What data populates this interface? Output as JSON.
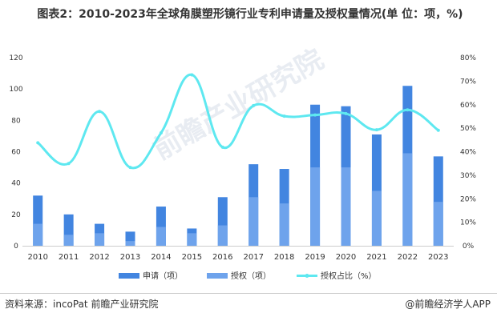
{
  "title": "图表2：2010-2023年全球角膜塑形镜行业专利申请量及授权量情况(单 位：项，%)",
  "chart_data": {
    "type": "bar+line",
    "title": "图表2：2010-2023年全球角膜塑形镜行业专利申请量及授权量情况(单 位：项，%)",
    "categories": [
      "2010",
      "2011",
      "2012",
      "2013",
      "2014",
      "2015",
      "2016",
      "2017",
      "2018",
      "2019",
      "2020",
      "2021",
      "2022",
      "2023"
    ],
    "series": [
      {
        "name": "申请（项）",
        "type": "bar",
        "axis": "left",
        "color": "#4285e0",
        "values": [
          32,
          20,
          14,
          9,
          25,
          11,
          31,
          52,
          49,
          90,
          89,
          71,
          102,
          57
        ]
      },
      {
        "name": "授权（项）",
        "type": "bar",
        "axis": "left",
        "color": "#6ea3ec",
        "values": [
          14,
          7,
          8,
          3,
          12,
          8,
          13,
          31,
          27,
          50,
          50,
          35,
          59,
          28
        ]
      },
      {
        "name": "授权占比（%）",
        "type": "line",
        "axis": "right",
        "color": "#5ee8f0",
        "values": [
          43.8,
          35.0,
          57.1,
          33.3,
          48.0,
          72.7,
          41.9,
          59.6,
          55.1,
          55.6,
          56.2,
          49.3,
          57.8,
          49.1
        ]
      }
    ],
    "left_axis": {
      "ylim": [
        0,
        120
      ],
      "ticks": [
        "0",
        "20",
        "40",
        "60",
        "80",
        "100",
        "120"
      ]
    },
    "right_axis": {
      "ylim": [
        0,
        80
      ],
      "ticks": [
        "0%",
        "10%",
        "20%",
        "30%",
        "40%",
        "50%",
        "60%",
        "70%",
        "80%"
      ]
    },
    "grid": false,
    "legend_position": "bottom"
  },
  "watermark": "前瞻产业研究院",
  "footer": {
    "source": "资料来源：incoPat 前瞻产业研究院",
    "brand": "@前瞻经济学人APP"
  }
}
